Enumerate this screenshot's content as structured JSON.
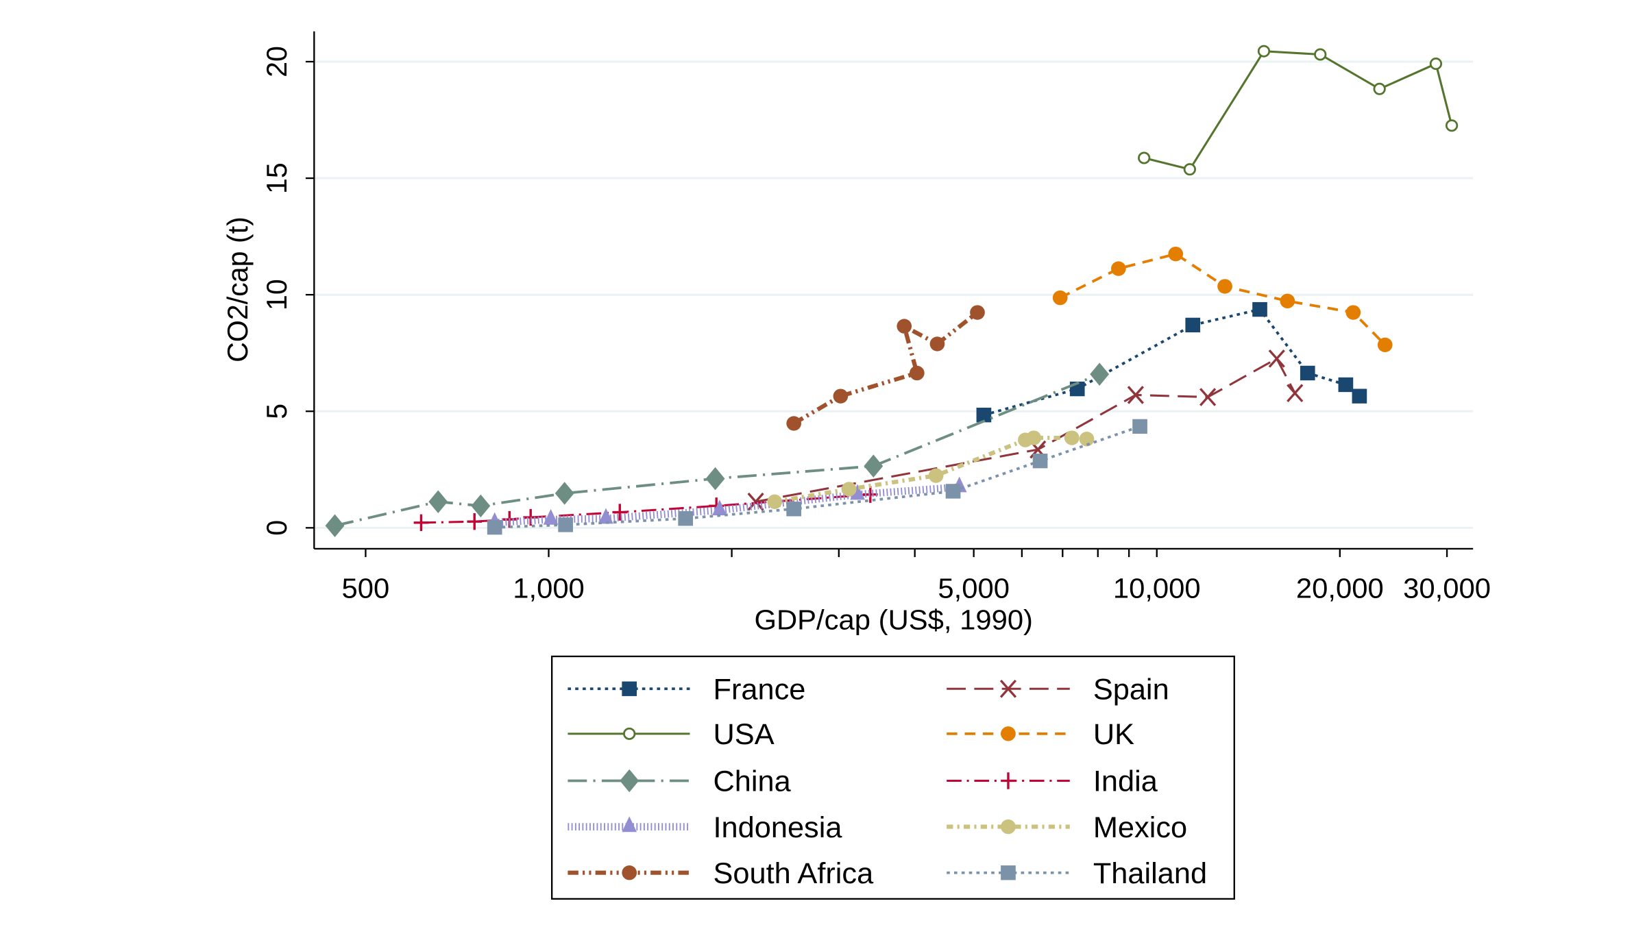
{
  "chart_data": {
    "type": "line",
    "xlabel": "GDP/cap (US$, 1990)",
    "ylabel": "CO2/cap (t)",
    "x_scale": "log",
    "xlim": [
      430,
      33000
    ],
    "ylim": [
      -0.9,
      21.3
    ],
    "x_ticks": [
      500,
      1000,
      5000,
      10000,
      20000,
      30000
    ],
    "x_tick_labels": [
      "500",
      "1,000",
      "5,000",
      "10,000",
      "20,000",
      "30,000"
    ],
    "x_minor_ticks": [
      2000,
      3000,
      4000,
      6000,
      7000,
      8000,
      9000
    ],
    "y_ticks": [
      0,
      5,
      10,
      15,
      20
    ],
    "y_tick_labels": [
      "0",
      "5",
      "10",
      "15",
      "20"
    ],
    "grid": "horizontal",
    "legend_placement": "bottom",
    "series": [
      {
        "name": "France",
        "color": "#1a476f",
        "marker": "square",
        "line": "dotted",
        "points": [
          [
            5195,
            4.84
          ],
          [
            7400,
            5.96
          ],
          [
            11460,
            8.7
          ],
          [
            14770,
            9.37
          ],
          [
            17700,
            6.64
          ],
          [
            20450,
            6.14
          ],
          [
            21540,
            5.65
          ]
        ]
      },
      {
        "name": "Spain",
        "color": "#90353b",
        "marker": "x",
        "line": "longdash",
        "points": [
          [
            2190,
            1.12
          ],
          [
            6375,
            3.36
          ],
          [
            9230,
            5.7
          ],
          [
            12130,
            5.61
          ],
          [
            15750,
            7.26
          ],
          [
            16870,
            5.78
          ]
        ]
      },
      {
        "name": "USA",
        "color": "#55752f",
        "marker": "hollow-circle",
        "line": "solid",
        "points": [
          [
            9530,
            15.87
          ],
          [
            11330,
            15.38
          ],
          [
            15000,
            20.45
          ],
          [
            18570,
            20.31
          ],
          [
            23240,
            18.83
          ],
          [
            28770,
            19.91
          ],
          [
            30550,
            17.26
          ]
        ]
      },
      {
        "name": "UK",
        "color": "#e37e00",
        "marker": "circle",
        "line": "dash",
        "points": [
          [
            6935,
            9.87
          ],
          [
            8650,
            11.12
          ],
          [
            10740,
            11.75
          ],
          [
            12940,
            10.36
          ],
          [
            16400,
            9.73
          ],
          [
            21040,
            9.24
          ],
          [
            23730,
            7.85
          ]
        ]
      },
      {
        "name": "China",
        "color": "#6e8e84",
        "marker": "diamond",
        "line": "longdash-dot",
        "points": [
          [
            445,
            0.09
          ],
          [
            658,
            1.12
          ],
          [
            773,
            0.94
          ],
          [
            1062,
            1.48
          ],
          [
            1879,
            2.11
          ],
          [
            3420,
            2.65
          ],
          [
            8050,
            6.59
          ]
        ]
      },
      {
        "name": "India",
        "color": "#c10534",
        "marker": "plus",
        "line": "dash-dot",
        "points": [
          [
            617,
            0.22
          ],
          [
            755,
            0.27
          ],
          [
            862,
            0.36
          ],
          [
            934,
            0.45
          ],
          [
            1309,
            0.67
          ],
          [
            1887,
            0.94
          ],
          [
            3380,
            1.43
          ]
        ]
      },
      {
        "name": "Indonesia",
        "color": "#938dd2",
        "marker": "triangle",
        "line": "hatched",
        "points": [
          [
            815,
            0.22
          ],
          [
            1008,
            0.36
          ],
          [
            1242,
            0.4
          ],
          [
            1910,
            0.76
          ],
          [
            3220,
            1.43
          ],
          [
            4735,
            1.75
          ]
        ]
      },
      {
        "name": "Mexico",
        "color": "#cac27e",
        "marker": "circle",
        "line": "shortdash-dot",
        "points": [
          [
            2353,
            1.12
          ],
          [
            3118,
            1.66
          ],
          [
            4335,
            2.24
          ],
          [
            6078,
            3.77
          ],
          [
            6276,
            3.86
          ],
          [
            7250,
            3.86
          ],
          [
            7670,
            3.81
          ]
        ]
      },
      {
        "name": "South Africa",
        "color": "#a0522d",
        "marker": "circle",
        "line": "dash-dot-dot",
        "points": [
          [
            2530,
            4.48
          ],
          [
            3020,
            5.65
          ],
          [
            4033,
            6.64
          ],
          [
            3843,
            8.65
          ],
          [
            4355,
            7.89
          ],
          [
            5070,
            9.24
          ]
        ]
      },
      {
        "name": "Thailand",
        "color": "#7b92a8",
        "marker": "square",
        "line": "dotted",
        "points": [
          [
            815,
            0.02
          ],
          [
            1066,
            0.13
          ],
          [
            1679,
            0.4
          ],
          [
            2530,
            0.81
          ],
          [
            4624,
            1.57
          ],
          [
            6430,
            2.87
          ],
          [
            9380,
            4.35
          ]
        ]
      }
    ]
  },
  "legend": {
    "left": [
      "France",
      "USA",
      "China",
      "Indonesia",
      "South Africa"
    ],
    "right": [
      "Spain",
      "UK",
      "India",
      "Mexico",
      "Thailand"
    ]
  }
}
